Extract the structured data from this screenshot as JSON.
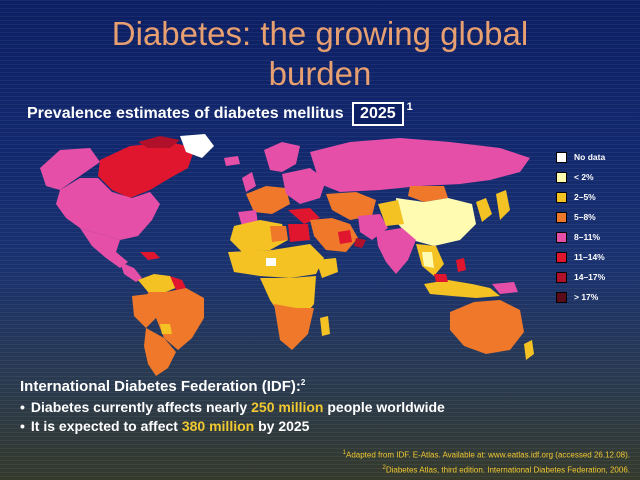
{
  "title": {
    "line1": "Diabetes: the growing global",
    "line2": "burden"
  },
  "subtitle": {
    "text": "Prevalence estimates of diabetes mellitus",
    "year": "2025",
    "footnote": "1"
  },
  "legend": [
    {
      "label": "No data",
      "color": "#ffffff"
    },
    {
      "label": "< 2%",
      "color": "#fffbb0"
    },
    {
      "label": "2–5%",
      "color": "#f5c223"
    },
    {
      "label": "5–8%",
      "color": "#f0782a"
    },
    {
      "label": "8–11%",
      "color": "#e64fa8"
    },
    {
      "label": "11–14%",
      "color": "#e0152e"
    },
    {
      "label": "14–17%",
      "color": "#b0102a"
    },
    {
      "label": "> 17%",
      "color": "#5a0a18"
    }
  ],
  "idf": {
    "heading": "International Diabetes Federation (IDF):",
    "heading_footnote": "2",
    "bullet1": {
      "pre": "Diabetes currently affects nearly ",
      "highlight": "250 million",
      "post": " people worldwide"
    },
    "bullet2": {
      "pre": "It is expected to affect ",
      "highlight": "380 million",
      "post": " by 2025"
    }
  },
  "references": [
    {
      "num": "1",
      "text": "Adapted from IDF. E-Atlas. Available at: www.eatlas.idf.org (accessed 26.12.08)."
    },
    {
      "num": "2",
      "text": "Diabetes Atlas, third edition. International Diabetes Federation, 2006."
    }
  ]
}
